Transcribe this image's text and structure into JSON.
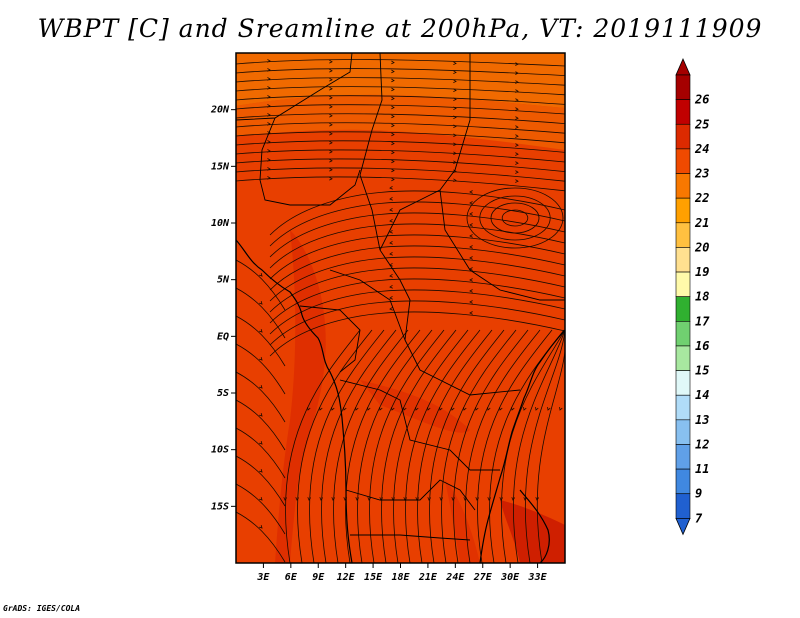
{
  "title": "WBPT [C] and Sreamline at 200hPa, VT: 2019111909",
  "credit": "GrADS: IGES/COLA",
  "map": {
    "type": "filled-contour-with-streamlines",
    "lon_range": [
      0,
      36
    ],
    "lat_range": [
      -20,
      25
    ],
    "lon_ticks": [
      {
        "value": 3,
        "label": "3E"
      },
      {
        "value": 6,
        "label": "6E"
      },
      {
        "value": 9,
        "label": "9E"
      },
      {
        "value": 12,
        "label": "12E"
      },
      {
        "value": 15,
        "label": "15E"
      },
      {
        "value": 18,
        "label": "18E"
      },
      {
        "value": 21,
        "label": "21E"
      },
      {
        "value": 24,
        "label": "24E"
      },
      {
        "value": 27,
        "label": "27E"
      },
      {
        "value": 30,
        "label": "30E"
      },
      {
        "value": 33,
        "label": "33E"
      }
    ],
    "lat_ticks": [
      {
        "value": 20,
        "label": "20N"
      },
      {
        "value": 15,
        "label": "15N"
      },
      {
        "value": 10,
        "label": "10N"
      },
      {
        "value": 5,
        "label": "5N"
      },
      {
        "value": 0,
        "label": "EQ"
      },
      {
        "value": -5,
        "label": "5S"
      },
      {
        "value": -10,
        "label": "10S"
      },
      {
        "value": -15,
        "label": "15S"
      }
    ]
  },
  "colorbar": {
    "levels": [
      {
        "label": "26",
        "color": "#a50000"
      },
      {
        "label": "25",
        "color": "#c00000"
      },
      {
        "label": "24",
        "color": "#dc2a00"
      },
      {
        "label": "23",
        "color": "#f04a00"
      },
      {
        "label": "22",
        "color": "#f87800"
      },
      {
        "label": "21",
        "color": "#ffa000"
      },
      {
        "label": "20",
        "color": "#ffc040"
      },
      {
        "label": "19",
        "color": "#ffe090"
      },
      {
        "label": "18",
        "color": "#fffaaa"
      },
      {
        "label": "17",
        "color": "#30b030"
      },
      {
        "label": "16",
        "color": "#70d070"
      },
      {
        "label": "15",
        "color": "#a8e8a0"
      },
      {
        "label": "14",
        "color": "#e0f8f8"
      },
      {
        "label": "13",
        "color": "#b0dcf8"
      },
      {
        "label": "12",
        "color": "#88c0f0"
      },
      {
        "label": "11",
        "color": "#60a0e8"
      },
      {
        "label": "9",
        "color": "#4088e0"
      },
      {
        "label": "7",
        "color": "#2060d0"
      }
    ],
    "bottom_color": "#2060d0"
  }
}
